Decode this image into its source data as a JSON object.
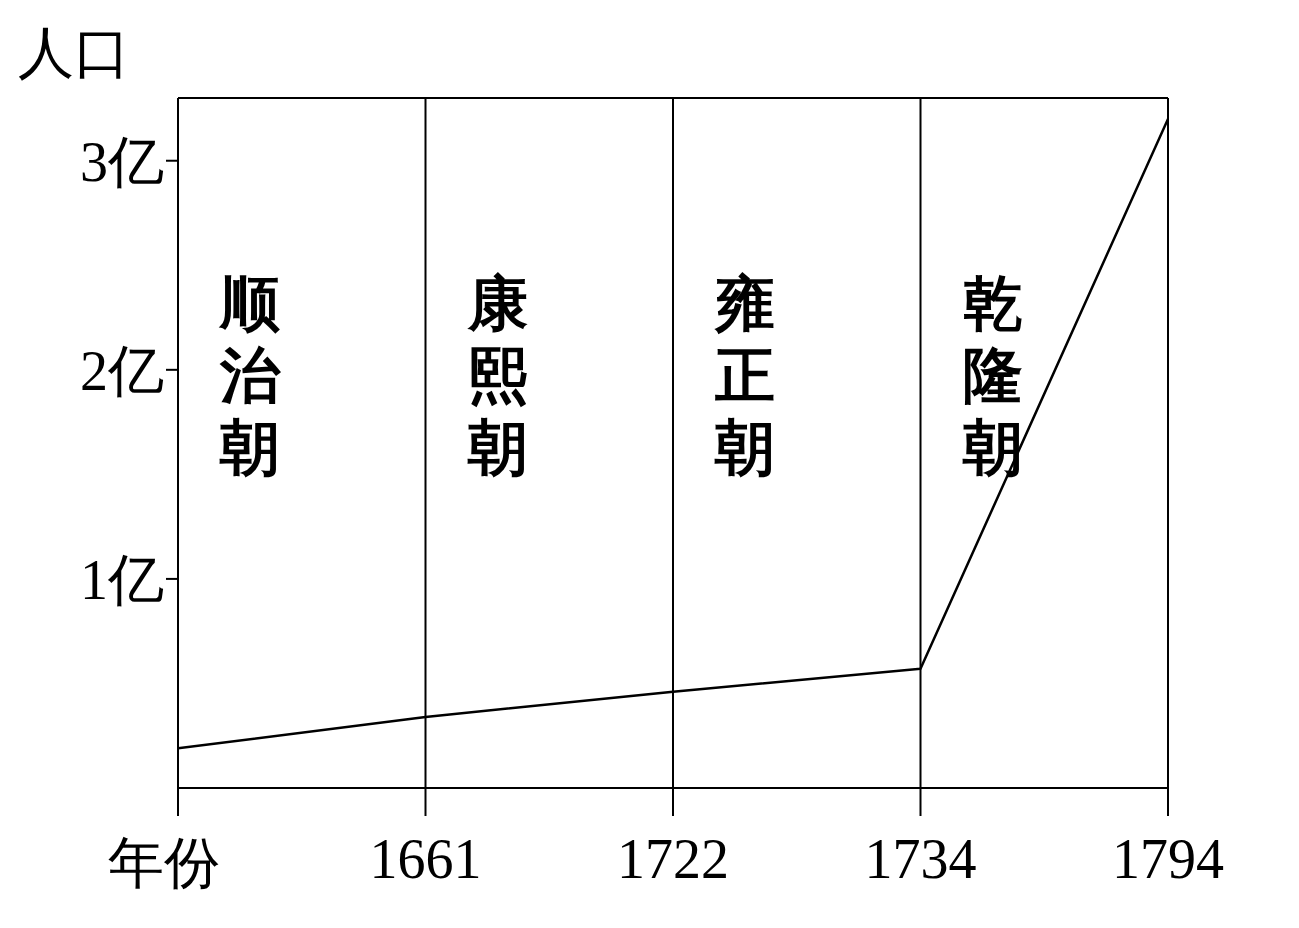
{
  "chart_data": {
    "type": "line",
    "xlabel": "年份",
    "ylabel": "人口",
    "categories": [
      null,
      "1661",
      "1722",
      "1734",
      "1794"
    ],
    "values": [
      0.19,
      0.34,
      0.46,
      0.57,
      3.2
    ],
    "color": "#000000",
    "marker": "none",
    "line_style": "solid",
    "ylim": [
      0,
      3.3
    ],
    "yticks": [
      {
        "value": 1,
        "label": "1亿"
      },
      {
        "value": 2,
        "label": "2亿"
      },
      {
        "value": 3,
        "label": "3亿"
      }
    ],
    "ref_lines": [
      {
        "axis": "x",
        "value": "1661"
      },
      {
        "axis": "x",
        "value": "1722"
      },
      {
        "axis": "x",
        "value": "1734"
      }
    ],
    "annotations": [
      "顺治朝",
      "康熙朝",
      "雍正朝",
      "乾隆朝"
    ]
  }
}
